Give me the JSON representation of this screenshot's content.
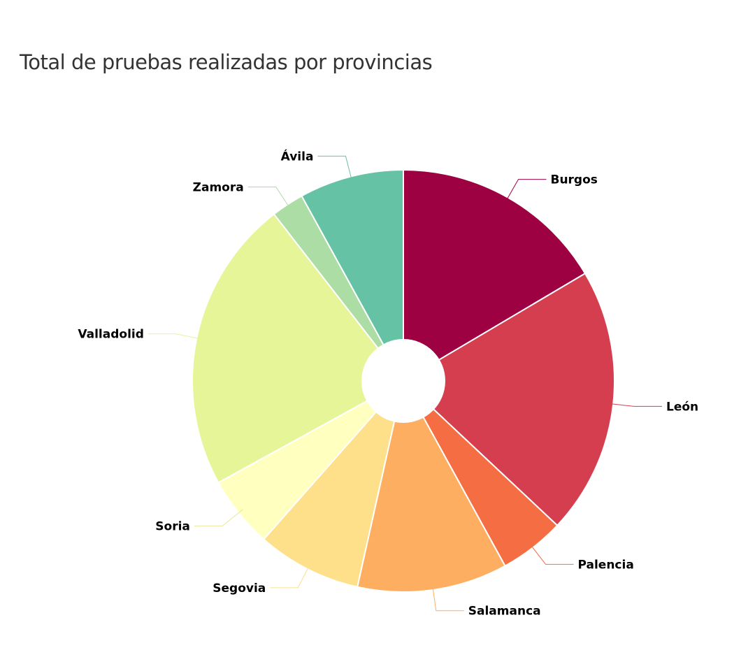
{
  "chart_data": {
    "type": "pie",
    "title": "Total de pruebas realizadas por provincias",
    "inner_hole": true,
    "legend": "none",
    "categories": [
      "Burgos",
      "León",
      "Palencia",
      "Salamanca",
      "Segovia",
      "Soria",
      "Valladolid",
      "Zamora",
      "Ávila"
    ],
    "values": [
      16.5,
      20.5,
      5.0,
      11.5,
      8.0,
      5.5,
      22.5,
      2.5,
      8.0
    ],
    "colors": [
      "#9e0142",
      "#d53e4f",
      "#f46d43",
      "#fdae61",
      "#fee08b",
      "#ffffbf",
      "#e6f598",
      "#abdda4",
      "#66c2a5"
    ]
  }
}
